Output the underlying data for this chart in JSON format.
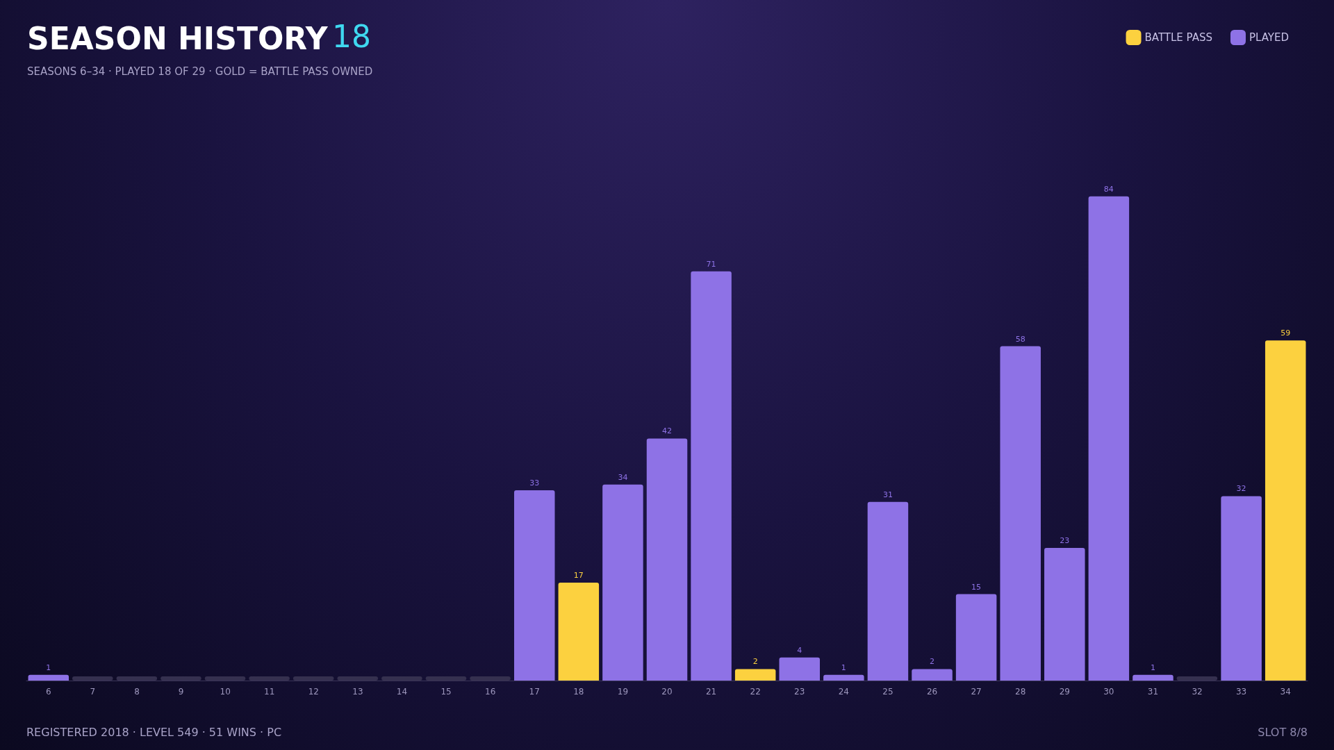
{
  "chart_data": {
    "type": "bar",
    "title": "SEASON HISTORY",
    "subtitle": "SEASONS 6–34 · PLAYED 18 OF 29 · GOLD = BATTLE PASS OWNED",
    "annotations": [
      "18",
      "REGISTERED 2018 · LEVEL 549 · 51 WINS · PC",
      "SLOT 8/8"
    ],
    "categories": [
      "6",
      "7",
      "8",
      "9",
      "10",
      "11",
      "12",
      "13",
      "14",
      "15",
      "16",
      "17",
      "18",
      "19",
      "20",
      "21",
      "22",
      "23",
      "24",
      "25",
      "26",
      "27",
      "28",
      "29",
      "30",
      "31",
      "32",
      "33",
      "34"
    ],
    "stacked": true,
    "legend": "top right",
    "grid": false,
    "tick_labels": "x",
    "series": [
      {
        "name": "BATTLE PASS",
        "color": "#fcd13f",
        "values": [
          null,
          null,
          null,
          null,
          null,
          null,
          null,
          null,
          null,
          null,
          null,
          null,
          17,
          null,
          null,
          null,
          2,
          null,
          null,
          null,
          null,
          null,
          null,
          null,
          null,
          null,
          null,
          null,
          59
        ],
        "value_labels": [
          null,
          null,
          null,
          null,
          null,
          null,
          null,
          null,
          null,
          null,
          null,
          null,
          "17",
          null,
          null,
          null,
          "2",
          null,
          null,
          null,
          null,
          null,
          null,
          null,
          null,
          null,
          null,
          null,
          "59"
        ]
      },
      {
        "name": "PLAYED",
        "color": "#8e72e6",
        "values": [
          1,
          0,
          0,
          0,
          0,
          0,
          0,
          0,
          0,
          0,
          0,
          33,
          null,
          34,
          42,
          71,
          null,
          4,
          1,
          31,
          2,
          15,
          58,
          23,
          84,
          1,
          0,
          32,
          null
        ],
        "colors": [
          "#8e72e6",
          "#35304f",
          "#35304f",
          "#35304f",
          "#35304f",
          "#35304f",
          "#35304f",
          "#35304f",
          "#35304f",
          "#35304f",
          "#35304f",
          "#8e72e6",
          null,
          "#8e72e6",
          "#8e72e6",
          "#8e72e6",
          null,
          "#8e72e6",
          "#8e72e6",
          "#8e72e6",
          "#8e72e6",
          "#8e72e6",
          "#8e72e6",
          "#8e72e6",
          "#8e72e6",
          "#8e72e6",
          "#35304f",
          "#8e72e6",
          null
        ],
        "value_labels": [
          "1",
          null,
          null,
          null,
          null,
          null,
          null,
          null,
          null,
          null,
          null,
          "33",
          null,
          "34",
          "42",
          "71",
          null,
          "4",
          "1",
          "31",
          "2",
          "15",
          "58",
          "23",
          "84",
          "1",
          null,
          "32",
          null
        ]
      }
    ]
  }
}
